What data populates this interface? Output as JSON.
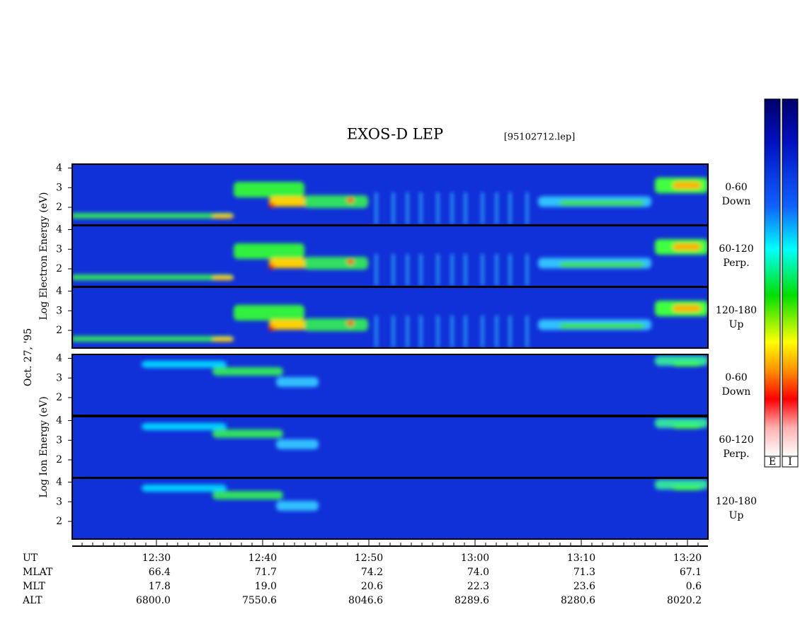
{
  "chart_data": {
    "type": "spectrogram",
    "title": "EXOS-D LEP",
    "file": "[95102712.lep]",
    "date": "Oct. 27, '95",
    "groups": [
      {
        "ylabel": "Log Electron Energy (eV)",
        "panels": [
          {
            "label": [
              "0-60",
              "Down"
            ]
          },
          {
            "label": [
              "60-120",
              "Perp."
            ]
          },
          {
            "label": [
              "120-180",
              "Up"
            ]
          }
        ]
      },
      {
        "ylabel": "Log Ion Energy (eV)",
        "panels": [
          {
            "label": [
              "0-60",
              "Down"
            ]
          },
          {
            "label": [
              "60-120",
              "Perp."
            ]
          },
          {
            "label": [
              "120-180",
              "Up"
            ]
          }
        ]
      }
    ],
    "ylim": [
      1.1,
      4.2
    ],
    "yticks": [
      2,
      3,
      4
    ],
    "xlim": [
      742.07,
      801.93
    ],
    "xticks": [
      {
        "value": 750,
        "label": "12:30"
      },
      {
        "value": 760,
        "label": "12:40"
      },
      {
        "value": 770,
        "label": "12:50"
      },
      {
        "value": 780,
        "label": "13:00"
      },
      {
        "value": 790,
        "label": "13:10"
      },
      {
        "value": 800,
        "label": "13:20"
      }
    ],
    "xminor": [
      743,
      744,
      745,
      746,
      747,
      748,
      749,
      751,
      752,
      753,
      754,
      755,
      756,
      757,
      758,
      759,
      761,
      762,
      763,
      764,
      765,
      766,
      767,
      768,
      769,
      771,
      772,
      773,
      774,
      775,
      776,
      777,
      778,
      779,
      781,
      782,
      783,
      784,
      785,
      786,
      787,
      788,
      789,
      791,
      792,
      793,
      794,
      795,
      796,
      797,
      798,
      799,
      801
    ],
    "ephemeris": [
      {
        "name": "UT"
      },
      {
        "name": "MLAT",
        "values": [
          "66.4",
          "71.7",
          "74.2",
          "74.0",
          "71.3",
          "67.1"
        ]
      },
      {
        "name": "MLT",
        "values": [
          "17.8",
          "19.0",
          "20.6",
          "22.3",
          "23.6",
          "0.6"
        ]
      },
      {
        "name": "ALT",
        "values": [
          "6800.0",
          "7550.6",
          "8046.6",
          "8289.6",
          "8280.6",
          "8020.2"
        ]
      }
    ],
    "colorbars": [
      "E",
      "I"
    ]
  }
}
